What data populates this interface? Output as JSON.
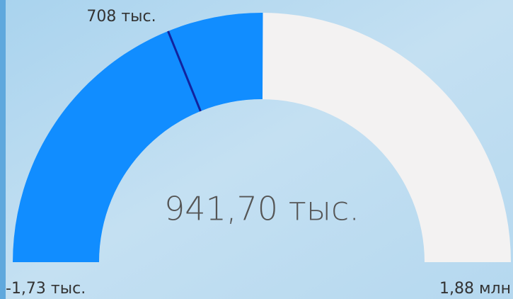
{
  "chart_data": {
    "type": "gauge",
    "value": 941700,
    "value_labels": [
      "941,70 тыс."
    ],
    "target": {
      "value": 708000,
      "label": "708 тыс."
    },
    "ylim": [
      -1730,
      1880000
    ],
    "yticks": [
      {
        "value": -1730,
        "label": "-1,73 тыс."
      },
      {
        "value": 1880000,
        "label": "1,88 млн"
      }
    ],
    "color": "#118dff",
    "track_color": "#f3f2f2",
    "target_color": "#12239e"
  }
}
